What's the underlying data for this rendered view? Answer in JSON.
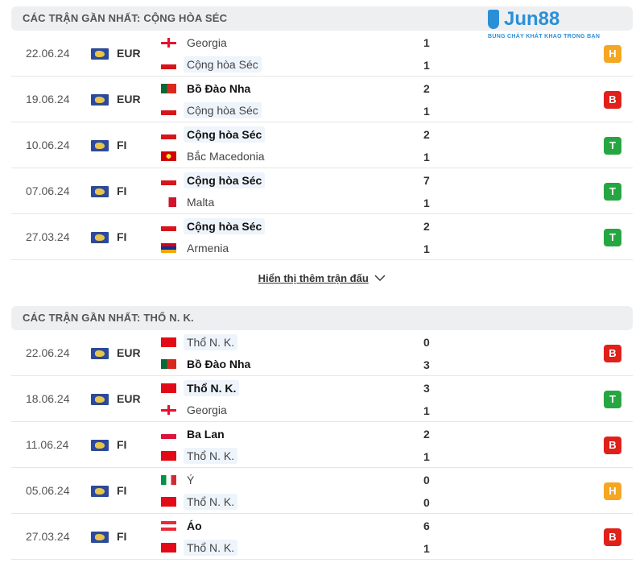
{
  "logo": {
    "brand": "Jun88",
    "tagline": "BUNG CHÁY KHÁT KHAO TRONG BẠN"
  },
  "colors": {
    "H": "#f5a623",
    "B": "#e0201b",
    "T": "#26a641",
    "highlight": "#eef4fb"
  },
  "sections": [
    {
      "title": "CÁC TRẬN GẦN NHẤT: CỘNG HÒA SÉC",
      "highlight": "Cộng hòa Séc",
      "matches": [
        {
          "date": "22.06.24",
          "comp": "EUR",
          "home": "Georgia",
          "home_flag": "georgia",
          "away": "Cộng hòa Séc",
          "away_flag": "czech",
          "home_score": "1",
          "away_score": "1",
          "result": "H",
          "winner": ""
        },
        {
          "date": "19.06.24",
          "comp": "EUR",
          "home": "Bồ Đào Nha",
          "home_flag": "portugal",
          "away": "Cộng hòa Séc",
          "away_flag": "czech",
          "home_score": "2",
          "away_score": "1",
          "result": "B",
          "winner": "home"
        },
        {
          "date": "10.06.24",
          "comp": "FI",
          "home": "Cộng hòa Séc",
          "home_flag": "czech",
          "away": "Bắc Macedonia",
          "away_flag": "macedonia",
          "home_score": "2",
          "away_score": "1",
          "result": "T",
          "winner": "home"
        },
        {
          "date": "07.06.24",
          "comp": "FI",
          "home": "Cộng hòa Séc",
          "home_flag": "czech",
          "away": "Malta",
          "away_flag": "malta",
          "home_score": "7",
          "away_score": "1",
          "result": "T",
          "winner": "home"
        },
        {
          "date": "27.03.24",
          "comp": "FI",
          "home": "Cộng hòa Séc",
          "home_flag": "czech",
          "away": "Armenia",
          "away_flag": "armenia",
          "home_score": "2",
          "away_score": "1",
          "result": "T",
          "winner": "home"
        }
      ]
    },
    {
      "title": "CÁC TRẬN GẦN NHẤT: THỔ N. K.",
      "highlight": "Thổ N. K.",
      "matches": [
        {
          "date": "22.06.24",
          "comp": "EUR",
          "home": "Thổ N. K.",
          "home_flag": "turkey",
          "away": "Bồ Đào Nha",
          "away_flag": "portugal",
          "home_score": "0",
          "away_score": "3",
          "result": "B",
          "winner": "away"
        },
        {
          "date": "18.06.24",
          "comp": "EUR",
          "home": "Thổ N. K.",
          "home_flag": "turkey",
          "away": "Georgia",
          "away_flag": "georgia",
          "home_score": "3",
          "away_score": "1",
          "result": "T",
          "winner": "home"
        },
        {
          "date": "11.06.24",
          "comp": "FI",
          "home": "Ba Lan",
          "home_flag": "poland",
          "away": "Thổ N. K.",
          "away_flag": "turkey",
          "home_score": "2",
          "away_score": "1",
          "result": "B",
          "winner": "home"
        },
        {
          "date": "05.06.24",
          "comp": "FI",
          "home": "Ý",
          "home_flag": "italy",
          "away": "Thổ N. K.",
          "away_flag": "turkey",
          "home_score": "0",
          "away_score": "0",
          "result": "H",
          "winner": ""
        },
        {
          "date": "27.03.24",
          "comp": "FI",
          "home": "Áo",
          "home_flag": "austria",
          "away": "Thổ N. K.",
          "away_flag": "turkey",
          "home_score": "6",
          "away_score": "1",
          "result": "B",
          "winner": "home"
        }
      ]
    }
  ],
  "show_more": "Hiển thị thêm trận đấu"
}
